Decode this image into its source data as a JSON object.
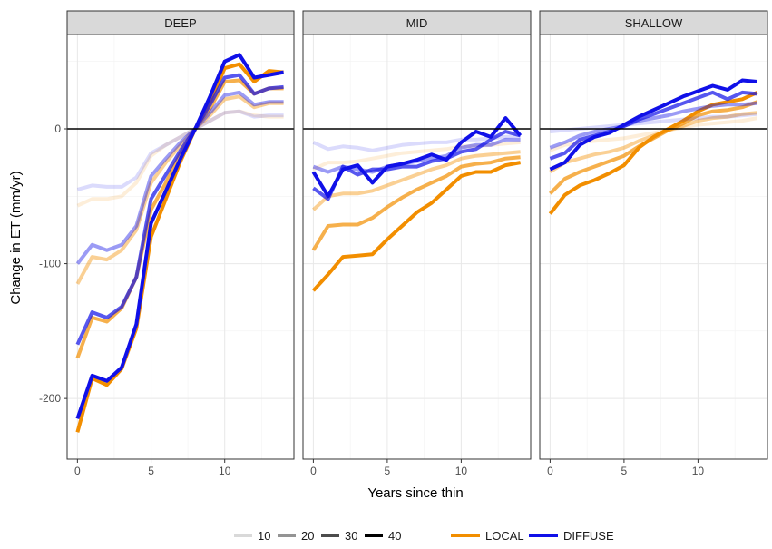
{
  "chart_data": {
    "type": "line",
    "xlabel": "Years since thin",
    "ylabel": "Change in ET (mm/yr)",
    "xlim": [
      -0.7,
      14.7
    ],
    "ylim": [
      -245,
      70
    ],
    "x_ticks": [
      0,
      5,
      10
    ],
    "y_ticks": [
      -200,
      -100,
      0
    ],
    "x_tick_labels": [
      "0",
      "5",
      "10"
    ],
    "y_tick_labels": [
      "-200",
      "-100",
      "0"
    ],
    "reference_line": 0,
    "colors": {
      "LOCAL": "#f28e00",
      "DIFFUSE": "#1010e8"
    },
    "intensity_opacity": {
      "10": 0.15,
      "20": 0.42,
      "30": 0.7,
      "40": 1.0
    },
    "x": [
      0,
      1,
      2,
      3,
      4,
      5,
      6,
      7,
      8,
      9,
      10,
      11,
      12,
      13,
      14
    ],
    "panels": [
      {
        "name": "DEEP",
        "series": [
          {
            "group": "LOCAL",
            "intensity": "10",
            "values": [
              -57,
              -52,
              -52,
              -50,
              -40,
              -20,
              -12,
              -6,
              0,
              6,
              12,
              13,
              10,
              9,
              9
            ]
          },
          {
            "group": "LOCAL",
            "intensity": "20",
            "values": [
              -115,
              -95,
              -97,
              -90,
              -75,
              -40,
              -25,
              -12,
              0,
              10,
              22,
              24,
              16,
              19,
              19
            ]
          },
          {
            "group": "LOCAL",
            "intensity": "30",
            "values": [
              -170,
              -140,
              -143,
              -133,
              -110,
              -60,
              -40,
              -18,
              0,
              15,
              35,
              36,
              26,
              30,
              30
            ]
          },
          {
            "group": "LOCAL",
            "intensity": "40",
            "values": [
              -225,
              -185,
              -190,
              -178,
              -148,
              -80,
              -52,
              -24,
              0,
              20,
              45,
              48,
              35,
              43,
              42
            ]
          },
          {
            "group": "DIFFUSE",
            "intensity": "10",
            "values": [
              -45,
              -42,
              -43,
              -43,
              -36,
              -18,
              -12,
              -6,
              0,
              6,
              12,
              13,
              9,
              10,
              10
            ]
          },
          {
            "group": "DIFFUSE",
            "intensity": "20",
            "values": [
              -100,
              -86,
              -90,
              -86,
              -72,
              -35,
              -22,
              -10,
              0,
              12,
              25,
              27,
              18,
              20,
              20
            ]
          },
          {
            "group": "DIFFUSE",
            "intensity": "30",
            "values": [
              -160,
              -136,
              -140,
              -132,
              -110,
              -52,
              -34,
              -16,
              0,
              18,
              38,
              40,
              26,
              30,
              31
            ]
          },
          {
            "group": "DIFFUSE",
            "intensity": "40",
            "values": [
              -215,
              -183,
              -187,
              -177,
              -145,
              -70,
              -46,
              -22,
              0,
              24,
              50,
              55,
              38,
              40,
              42
            ]
          }
        ]
      },
      {
        "name": "MID",
        "series": [
          {
            "group": "LOCAL",
            "intensity": "10",
            "values": [
              -30,
              -25,
              -25,
              -24,
              -22,
              -20,
              -18,
              -17,
              -16,
              -15,
              -13,
              -13,
              -12,
              -11,
              -10
            ]
          },
          {
            "group": "LOCAL",
            "intensity": "20",
            "values": [
              -60,
              -50,
              -48,
              -48,
              -46,
              -42,
              -38,
              -34,
              -30,
              -27,
              -22,
              -20,
              -19,
              -18,
              -17
            ]
          },
          {
            "group": "LOCAL",
            "intensity": "30",
            "values": [
              -90,
              -72,
              -71,
              -71,
              -66,
              -58,
              -51,
              -45,
              -40,
              -35,
              -28,
              -26,
              -25,
              -22,
              -21
            ]
          },
          {
            "group": "LOCAL",
            "intensity": "40",
            "values": [
              -120,
              -108,
              -95,
              -94,
              -93,
              -82,
              -72,
              -62,
              -55,
              -45,
              -35,
              -32,
              -32,
              -27,
              -25
            ]
          },
          {
            "group": "DIFFUSE",
            "intensity": "10",
            "values": [
              -10,
              -15,
              -13,
              -14,
              -16,
              -14,
              -12,
              -11,
              -10,
              -10,
              -8,
              -8,
              -7,
              -6,
              -5
            ]
          },
          {
            "group": "DIFFUSE",
            "intensity": "20",
            "values": [
              -28,
              -32,
              -28,
              -30,
              -32,
              -28,
              -26,
              -24,
              -22,
              -20,
              -14,
              -12,
              -12,
              -8,
              -8
            ]
          },
          {
            "group": "DIFFUSE",
            "intensity": "30",
            "values": [
              -44,
              -52,
              -28,
              -34,
              -30,
              -30,
              -28,
              -28,
              -24,
              -22,
              -17,
              -15,
              -8,
              -2,
              -5
            ]
          },
          {
            "group": "DIFFUSE",
            "intensity": "40",
            "values": [
              -32,
              -50,
              -30,
              -27,
              -40,
              -28,
              -26,
              -23,
              -19,
              -23,
              -10,
              -2,
              -6,
              8,
              -5
            ]
          }
        ]
      },
      {
        "name": "SHALLOW",
        "series": [
          {
            "group": "LOCAL",
            "intensity": "10",
            "values": [
              -16,
              -12,
              -10,
              -9,
              -8,
              -7,
              -5,
              -3,
              -1,
              1,
              3,
              4,
              5,
              6,
              8
            ]
          },
          {
            "group": "LOCAL",
            "intensity": "20",
            "values": [
              -32,
              -25,
              -22,
              -19,
              -17,
              -14,
              -9,
              -5,
              -1,
              2,
              6,
              8,
              9,
              11,
              12
            ]
          },
          {
            "group": "LOCAL",
            "intensity": "30",
            "values": [
              -48,
              -37,
              -32,
              -28,
              -24,
              -20,
              -13,
              -7,
              -1,
              4,
              10,
              13,
              14,
              16,
              20
            ]
          },
          {
            "group": "LOCAL",
            "intensity": "40",
            "values": [
              -63,
              -49,
              -42,
              -38,
              -33,
              -27,
              -14,
              -6,
              0,
              6,
              13,
              18,
              20,
              22,
              27
            ]
          },
          {
            "group": "DIFFUSE",
            "intensity": "10",
            "values": [
              -2,
              -1,
              0,
              1,
              2,
              3,
              4,
              5,
              6,
              7,
              8,
              9,
              9,
              10,
              11
            ]
          },
          {
            "group": "DIFFUSE",
            "intensity": "20",
            "values": [
              -14,
              -10,
              -5,
              -2,
              0,
              2,
              6,
              8,
              10,
              13,
              15,
              17,
              18,
              18,
              19
            ]
          },
          {
            "group": "DIFFUSE",
            "intensity": "30",
            "values": [
              -22,
              -18,
              -8,
              -5,
              -2,
              2,
              7,
              11,
              15,
              19,
              23,
              27,
              22,
              27,
              26
            ]
          },
          {
            "group": "DIFFUSE",
            "intensity": "40",
            "values": [
              -30,
              -25,
              -12,
              -6,
              -3,
              3,
              9,
              14,
              19,
              24,
              28,
              32,
              29,
              36,
              35
            ]
          }
        ]
      }
    ],
    "legend": {
      "intensity_items": [
        "10",
        "20",
        "30",
        "40"
      ],
      "group_items": [
        "LOCAL",
        "DIFFUSE"
      ]
    }
  }
}
